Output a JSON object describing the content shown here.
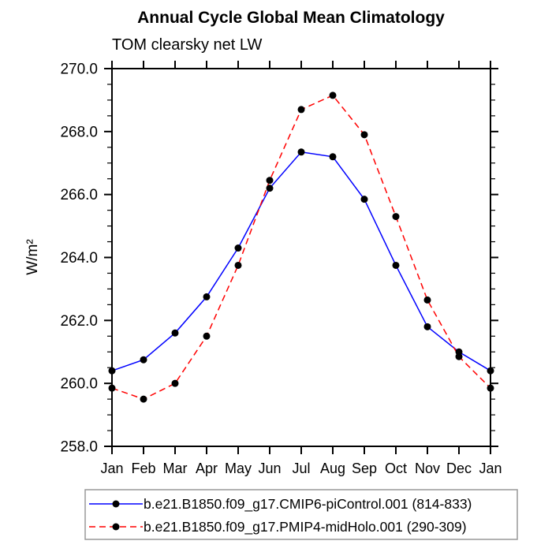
{
  "title": "Annual Cycle Global Mean Climatology",
  "subtitle": "TOM clearsky net LW",
  "ylabel": "W/m²",
  "chart_data": {
    "type": "line",
    "categories": [
      "Jan",
      "Feb",
      "Mar",
      "Apr",
      "May",
      "Jun",
      "Jul",
      "Aug",
      "Sep",
      "Oct",
      "Nov",
      "Dec",
      "Jan"
    ],
    "series": [
      {
        "name": "b.e21.B1850.f09_g17.CMIP6-piControl.001 (814-833)",
        "color": "#0000ff",
        "line_style": "solid",
        "marker": "filled-circle",
        "marker_color": "#000000",
        "values": [
          260.4,
          260.75,
          261.6,
          262.75,
          264.3,
          266.2,
          267.35,
          267.2,
          265.85,
          263.75,
          261.8,
          261.0,
          260.4
        ]
      },
      {
        "name": "b.e21.B1850.f09_g17.PMIP4-midHolo.001 (290-309)",
        "color": "#ff0000",
        "line_style": "dashed",
        "marker": "filled-circle",
        "marker_color": "#000000",
        "values": [
          259.85,
          259.5,
          260.0,
          261.5,
          263.75,
          266.45,
          268.7,
          269.15,
          267.9,
          265.3,
          262.65,
          260.85,
          259.85
        ]
      }
    ],
    "ylim": [
      258.0,
      270.0
    ],
    "ytick_step": 2.0,
    "yminor_step": 0.5,
    "ytick_decimals": 1,
    "xlabel": "",
    "grid": false,
    "legend_position": "bottom"
  }
}
